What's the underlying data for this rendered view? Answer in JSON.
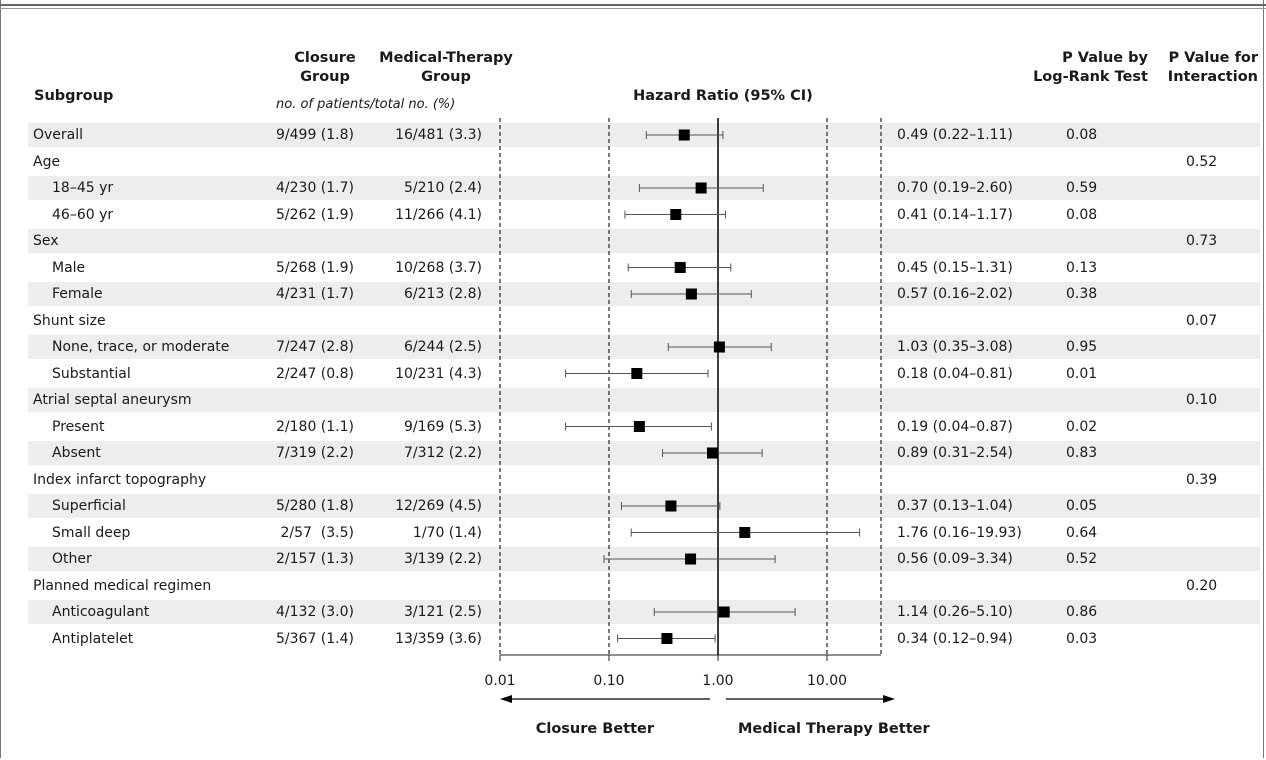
{
  "headers": {
    "subgroup": "Subgroup",
    "closure_l1": "Closure",
    "closure_l2": "Group",
    "medical_l1": "Medical-Therapy",
    "medical_l2": "Group",
    "hr": "Hazard Ratio (95% CI)",
    "p_logrank_l1": "P Value by",
    "p_logrank_l2": "Log-Rank Test",
    "p_inter_l1": "P Value for",
    "p_inter_l2": "Interaction",
    "units": "no. of patients/total no. (%)"
  },
  "rows": [
    {
      "label": "Overall",
      "indent": false,
      "closure": "9/499 (1.8)",
      "medical": "16/481 (3.3)",
      "hr_text": "0.49 (0.22–1.11)",
      "p_logrank": "0.08",
      "p_interaction": ""
    },
    {
      "label": "Age",
      "indent": false,
      "closure": "",
      "medical": "",
      "hr_text": "",
      "p_logrank": "",
      "p_interaction": "0.52"
    },
    {
      "label": "18–45 yr",
      "indent": true,
      "closure": "4/230 (1.7)",
      "medical": "5/210 (2.4)",
      "hr_text": "0.70 (0.19–2.60)",
      "p_logrank": "0.59",
      "p_interaction": ""
    },
    {
      "label": "46–60 yr",
      "indent": true,
      "closure": "5/262 (1.9)",
      "medical": "11/266 (4.1)",
      "hr_text": "0.41 (0.14–1.17)",
      "p_logrank": "0.08",
      "p_interaction": ""
    },
    {
      "label": "Sex",
      "indent": false,
      "closure": "",
      "medical": "",
      "hr_text": "",
      "p_logrank": "",
      "p_interaction": "0.73"
    },
    {
      "label": "Male",
      "indent": true,
      "closure": "5/268 (1.9)",
      "medical": "10/268 (3.7)",
      "hr_text": "0.45 (0.15–1.31)",
      "p_logrank": "0.13",
      "p_interaction": ""
    },
    {
      "label": "Female",
      "indent": true,
      "closure": "4/231 (1.7)",
      "medical": "6/213 (2.8)",
      "hr_text": "0.57 (0.16–2.02)",
      "p_logrank": "0.38",
      "p_interaction": ""
    },
    {
      "label": "Shunt size",
      "indent": false,
      "closure": "",
      "medical": "",
      "hr_text": "",
      "p_logrank": "",
      "p_interaction": "0.07"
    },
    {
      "label": "None, trace, or moderate",
      "indent": true,
      "closure": "7/247 (2.8)",
      "medical": "6/244 (2.5)",
      "hr_text": "1.03 (0.35–3.08)",
      "p_logrank": "0.95",
      "p_interaction": ""
    },
    {
      "label": "Substantial",
      "indent": true,
      "closure": "2/247 (0.8)",
      "medical": "10/231 (4.3)",
      "hr_text": "0.18 (0.04–0.81)",
      "p_logrank": "0.01",
      "p_interaction": ""
    },
    {
      "label": "Atrial septal aneurysm",
      "indent": false,
      "closure": "",
      "medical": "",
      "hr_text": "",
      "p_logrank": "",
      "p_interaction": "0.10"
    },
    {
      "label": "Present",
      "indent": true,
      "closure": "2/180 (1.1)",
      "medical": "9/169 (5.3)",
      "hr_text": "0.19 (0.04–0.87)",
      "p_logrank": "0.02",
      "p_interaction": ""
    },
    {
      "label": "Absent",
      "indent": true,
      "closure": "7/319 (2.2)",
      "medical": "7/312 (2.2)",
      "hr_text": "0.89 (0.31–2.54)",
      "p_logrank": "0.83",
      "p_interaction": ""
    },
    {
      "label": "Index infarct topography",
      "indent": false,
      "closure": "",
      "medical": "",
      "hr_text": "",
      "p_logrank": "",
      "p_interaction": "0.39"
    },
    {
      "label": "Superficial",
      "indent": true,
      "closure": "5/280 (1.8)",
      "medical": "12/269 (4.5)",
      "hr_text": "0.37 (0.13–1.04)",
      "p_logrank": "0.05",
      "p_interaction": ""
    },
    {
      "label": "Small deep",
      "indent": true,
      "closure": "2/57  (3.5)",
      "medical": "1/70 (1.4)",
      "hr_text": "1.76 (0.16–19.93)",
      "p_logrank": "0.64",
      "p_interaction": ""
    },
    {
      "label": "Other",
      "indent": true,
      "closure": "2/157 (1.3)",
      "medical": "3/139 (2.2)",
      "hr_text": "0.56 (0.09–3.34)",
      "p_logrank": "0.52",
      "p_interaction": ""
    },
    {
      "label": "Planned medical regimen",
      "indent": false,
      "closure": "",
      "medical": "",
      "hr_text": "",
      "p_logrank": "",
      "p_interaction": "0.20"
    },
    {
      "label": "Anticoagulant",
      "indent": true,
      "closure": "4/132 (3.0)",
      "medical": "3/121 (2.5)",
      "hr_text": "1.14 (0.26–5.10)",
      "p_logrank": "0.86",
      "p_interaction": ""
    },
    {
      "label": "Antiplatelet",
      "indent": true,
      "closure": "5/367 (1.4)",
      "medical": "13/359 (3.6)",
      "hr_text": "0.34 (0.12–0.94)",
      "p_logrank": "0.03",
      "p_interaction": ""
    }
  ],
  "chart_data": {
    "type": "forest",
    "xscale": "log",
    "xlim": [
      0.01,
      30
    ],
    "reference_line": 1.0,
    "ticks": [
      0.01,
      0.1,
      1.0,
      10.0
    ],
    "tick_labels": [
      "0.01",
      "0.10",
      "1.00",
      "10.00"
    ],
    "left_label": "Closure Better",
    "right_label": "Medical Therapy Better",
    "points": [
      {
        "label": "Overall",
        "hr": 0.49,
        "lo": 0.22,
        "hi": 1.11
      },
      {
        "label": "18–45 yr",
        "hr": 0.7,
        "lo": 0.19,
        "hi": 2.6
      },
      {
        "label": "46–60 yr",
        "hr": 0.41,
        "lo": 0.14,
        "hi": 1.17
      },
      {
        "label": "Male",
        "hr": 0.45,
        "lo": 0.15,
        "hi": 1.31
      },
      {
        "label": "Female",
        "hr": 0.57,
        "lo": 0.16,
        "hi": 2.02
      },
      {
        "label": "None, trace, or moderate",
        "hr": 1.03,
        "lo": 0.35,
        "hi": 3.08
      },
      {
        "label": "Substantial",
        "hr": 0.18,
        "lo": 0.04,
        "hi": 0.81
      },
      {
        "label": "Present",
        "hr": 0.19,
        "lo": 0.04,
        "hi": 0.87
      },
      {
        "label": "Absent",
        "hr": 0.89,
        "lo": 0.31,
        "hi": 2.54
      },
      {
        "label": "Superficial",
        "hr": 0.37,
        "lo": 0.13,
        "hi": 1.04
      },
      {
        "label": "Small deep",
        "hr": 1.76,
        "lo": 0.16,
        "hi": 19.93
      },
      {
        "label": "Other",
        "hr": 0.56,
        "lo": 0.09,
        "hi": 3.34
      },
      {
        "label": "Anticoagulant",
        "hr": 1.14,
        "lo": 0.26,
        "hi": 5.1
      },
      {
        "label": "Antiplatelet",
        "hr": 0.34,
        "lo": 0.12,
        "hi": 0.94
      }
    ]
  }
}
